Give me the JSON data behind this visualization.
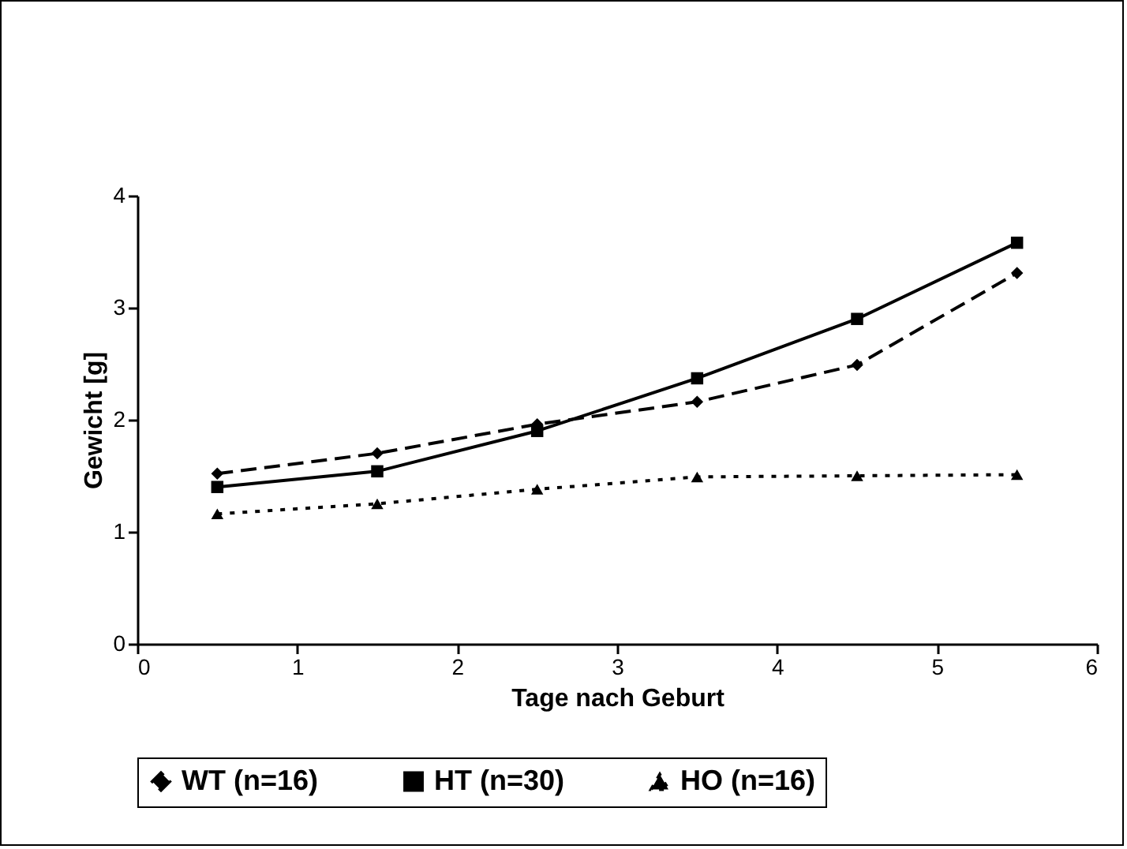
{
  "chart_data": {
    "type": "line",
    "xlabel": "Tage nach Geburt",
    "ylabel": "Gewicht [g]",
    "x": [
      0.5,
      1.5,
      2.5,
      3.5,
      4.5,
      5.5
    ],
    "xlim": [
      0,
      6
    ],
    "xticks": [
      0,
      1,
      2,
      3,
      4,
      5,
      6
    ],
    "ylim": [
      0,
      4
    ],
    "yticks": [
      0,
      1,
      2,
      3,
      4
    ],
    "grid": false,
    "legend": "bottom",
    "series": [
      {
        "name": "WT (n=16)",
        "color": "#000000",
        "marker": "diamond",
        "line_style": "dashed",
        "values": [
          1.52,
          1.7,
          1.96,
          2.16,
          2.49,
          3.31
        ]
      },
      {
        "name": "HT (n=30)",
        "color": "#000000",
        "marker": "square",
        "line_style": "solid",
        "values": [
          1.4,
          1.54,
          1.9,
          2.37,
          2.9,
          3.58
        ]
      },
      {
        "name": "HO (n=16)",
        "color": "#000000",
        "marker": "triangle",
        "line_style": "dotted",
        "values": [
          1.16,
          1.25,
          1.38,
          1.49,
          1.5,
          1.51
        ]
      }
    ]
  }
}
